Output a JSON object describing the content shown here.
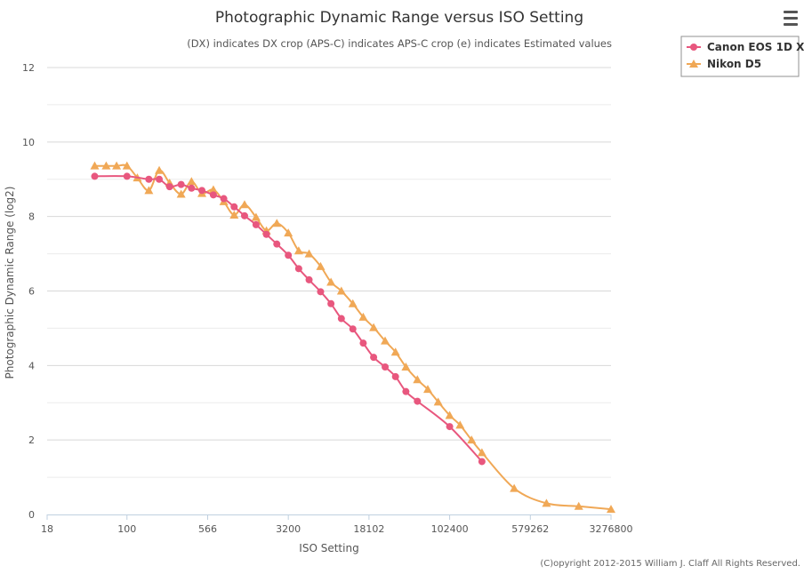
{
  "chart_data": {
    "type": "line",
    "title": "Photographic Dynamic Range versus ISO Setting",
    "subtitle": "(DX) indicates DX crop (APS-C) indicates APS-C crop (e) indicates Estimated values",
    "xlabel": "ISO Setting",
    "ylabel": "Photographic Dynamic Range (log2)",
    "x_scale": "log2",
    "xlim": [
      18,
      3276800
    ],
    "ylim": [
      0,
      12
    ],
    "x_ticks": [
      18,
      100,
      566,
      3200,
      18102,
      102400,
      579262,
      3276800
    ],
    "x_tick_labels": [
      "18",
      "100",
      "566",
      "3200",
      "18102",
      "102400",
      "579262",
      "3276800"
    ],
    "y_ticks": [
      0,
      2,
      4,
      6,
      8,
      10,
      12
    ],
    "y_tick_labels": [
      "0",
      "2",
      "4",
      "6",
      "8",
      "10",
      "12"
    ],
    "grid": true,
    "legend_position": "top-right",
    "series": [
      {
        "name": "Canon EOS 1D X",
        "color": "#e8577e",
        "marker": "circle",
        "points": [
          [
            50,
            9.08
          ],
          [
            100,
            9.08
          ],
          [
            160,
            9.0
          ],
          [
            200,
            9.0
          ],
          [
            250,
            8.8
          ],
          [
            320,
            8.86
          ],
          [
            400,
            8.76
          ],
          [
            500,
            8.7
          ],
          [
            640,
            8.58
          ],
          [
            800,
            8.48
          ],
          [
            1000,
            8.26
          ],
          [
            1250,
            8.02
          ],
          [
            1600,
            7.78
          ],
          [
            2000,
            7.52
          ],
          [
            2500,
            7.26
          ],
          [
            3200,
            6.96
          ],
          [
            4000,
            6.6
          ],
          [
            5000,
            6.3
          ],
          [
            6400,
            5.98
          ],
          [
            8000,
            5.66
          ],
          [
            10000,
            5.26
          ],
          [
            12800,
            4.98
          ],
          [
            16000,
            4.6
          ],
          [
            20000,
            4.22
          ],
          [
            25600,
            3.96
          ],
          [
            32000,
            3.7
          ],
          [
            40000,
            3.3
          ],
          [
            51200,
            3.04
          ],
          [
            102400,
            2.36
          ],
          [
            204800,
            1.42
          ]
        ]
      },
      {
        "name": "Nikon D5",
        "color": "#f0a856",
        "marker": "triangle",
        "points": [
          [
            50,
            9.36
          ],
          [
            64,
            9.36
          ],
          [
            80,
            9.36
          ],
          [
            100,
            9.36
          ],
          [
            125,
            9.04
          ],
          [
            160,
            8.7
          ],
          [
            200,
            9.24
          ],
          [
            250,
            8.9
          ],
          [
            320,
            8.6
          ],
          [
            400,
            8.94
          ],
          [
            500,
            8.62
          ],
          [
            640,
            8.72
          ],
          [
            800,
            8.4
          ],
          [
            1000,
            8.04
          ],
          [
            1250,
            8.32
          ],
          [
            1600,
            7.98
          ],
          [
            2000,
            7.62
          ],
          [
            2500,
            7.82
          ],
          [
            3200,
            7.56
          ],
          [
            4000,
            7.08
          ],
          [
            5000,
            7.0
          ],
          [
            6400,
            6.66
          ],
          [
            8000,
            6.24
          ],
          [
            10000,
            6.0
          ],
          [
            12800,
            5.66
          ],
          [
            16000,
            5.3
          ],
          [
            20000,
            5.02
          ],
          [
            25600,
            4.66
          ],
          [
            32000,
            4.36
          ],
          [
            40000,
            3.96
          ],
          [
            51200,
            3.62
          ],
          [
            64000,
            3.36
          ],
          [
            80000,
            3.02
          ],
          [
            102400,
            2.66
          ],
          [
            128000,
            2.4
          ],
          [
            164000,
            2.0
          ],
          [
            204800,
            1.66
          ],
          [
            409600,
            0.7
          ],
          [
            819200,
            0.3
          ],
          [
            1638400,
            0.22
          ],
          [
            3276800,
            0.14
          ]
        ]
      }
    ]
  },
  "credits": "(C)opyright 2012-2015 William J. Claff All Rights Reserved."
}
